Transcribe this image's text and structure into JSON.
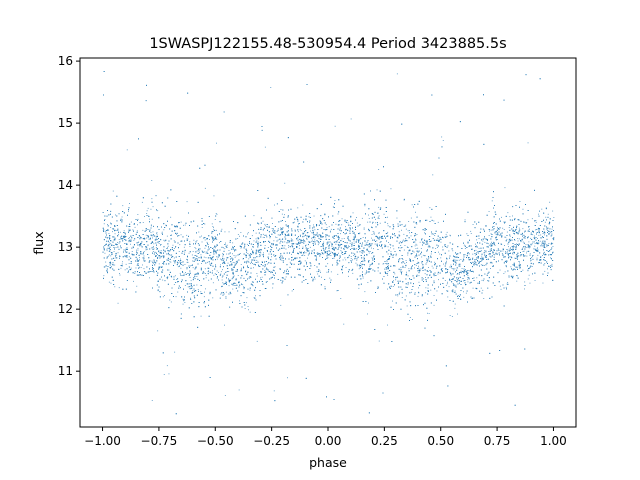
{
  "chart_data": {
    "type": "scatter",
    "title": "1SWASPJ122155.48-530954.4 Period 3423885.5s",
    "xlabel": "phase",
    "ylabel": "flux",
    "xlim": [
      -1.1,
      1.1
    ],
    "ylim": [
      10.1,
      16.05
    ],
    "xticks": [
      {
        "value": -1.0,
        "label": "−1.00"
      },
      {
        "value": -0.75,
        "label": "−0.75"
      },
      {
        "value": -0.5,
        "label": "−0.50"
      },
      {
        "value": -0.25,
        "label": "−0.25"
      },
      {
        "value": 0.0,
        "label": "0.00"
      },
      {
        "value": 0.25,
        "label": "0.25"
      },
      {
        "value": 0.5,
        "label": "0.50"
      },
      {
        "value": 0.75,
        "label": "0.75"
      },
      {
        "value": 1.0,
        "label": "1.00"
      }
    ],
    "yticks": [
      {
        "value": 11,
        "label": "11"
      },
      {
        "value": 12,
        "label": "12"
      },
      {
        "value": 13,
        "label": "13"
      },
      {
        "value": 14,
        "label": "14"
      },
      {
        "value": 15,
        "label": "15"
      },
      {
        "value": 16,
        "label": "16"
      }
    ],
    "grid": false,
    "marker_color": "#1f77b4",
    "x_range_of_data": [
      -1.0,
      1.0
    ],
    "phase_folded": true,
    "series": [
      {
        "x": [
          -1.0,
          -0.95,
          -0.9,
          -0.85,
          -0.8,
          -0.75,
          -0.7,
          -0.65,
          -0.6,
          -0.55,
          -0.5,
          -0.45,
          -0.4,
          -0.35,
          -0.3,
          -0.25,
          -0.2,
          -0.15,
          -0.1,
          -0.05,
          0.0,
          0.05,
          0.1,
          0.15,
          0.2,
          0.25,
          0.3,
          0.35,
          0.4,
          0.45,
          0.5,
          0.55,
          0.6,
          0.65,
          0.7,
          0.75,
          0.8,
          0.85,
          0.9,
          0.95,
          1.0
        ],
        "y_median": [
          13.1,
          13.0,
          13.05,
          12.9,
          13.1,
          13.0,
          12.85,
          12.8,
          12.75,
          12.8,
          12.95,
          12.6,
          12.65,
          12.8,
          12.9,
          13.0,
          13.05,
          12.95,
          13.0,
          13.05,
          13.1,
          13.0,
          13.05,
          12.9,
          13.1,
          13.0,
          12.85,
          12.8,
          12.75,
          12.8,
          12.95,
          12.6,
          12.65,
          12.8,
          12.9,
          13.0,
          13.05,
          12.95,
          13.0,
          13.05,
          13.1
        ],
        "y_spread": [
          0.55,
          0.5,
          0.5,
          0.55,
          0.6,
          0.65,
          0.7,
          0.75,
          0.7,
          0.65,
          0.6,
          0.5,
          0.55,
          0.6,
          0.6,
          0.6,
          0.55,
          0.5,
          0.5,
          0.5,
          0.55,
          0.5,
          0.5,
          0.55,
          0.6,
          0.65,
          0.7,
          0.75,
          0.7,
          0.65,
          0.6,
          0.5,
          0.55,
          0.6,
          0.6,
          0.6,
          0.55,
          0.5,
          0.5,
          0.5,
          0.55
        ]
      }
    ]
  }
}
